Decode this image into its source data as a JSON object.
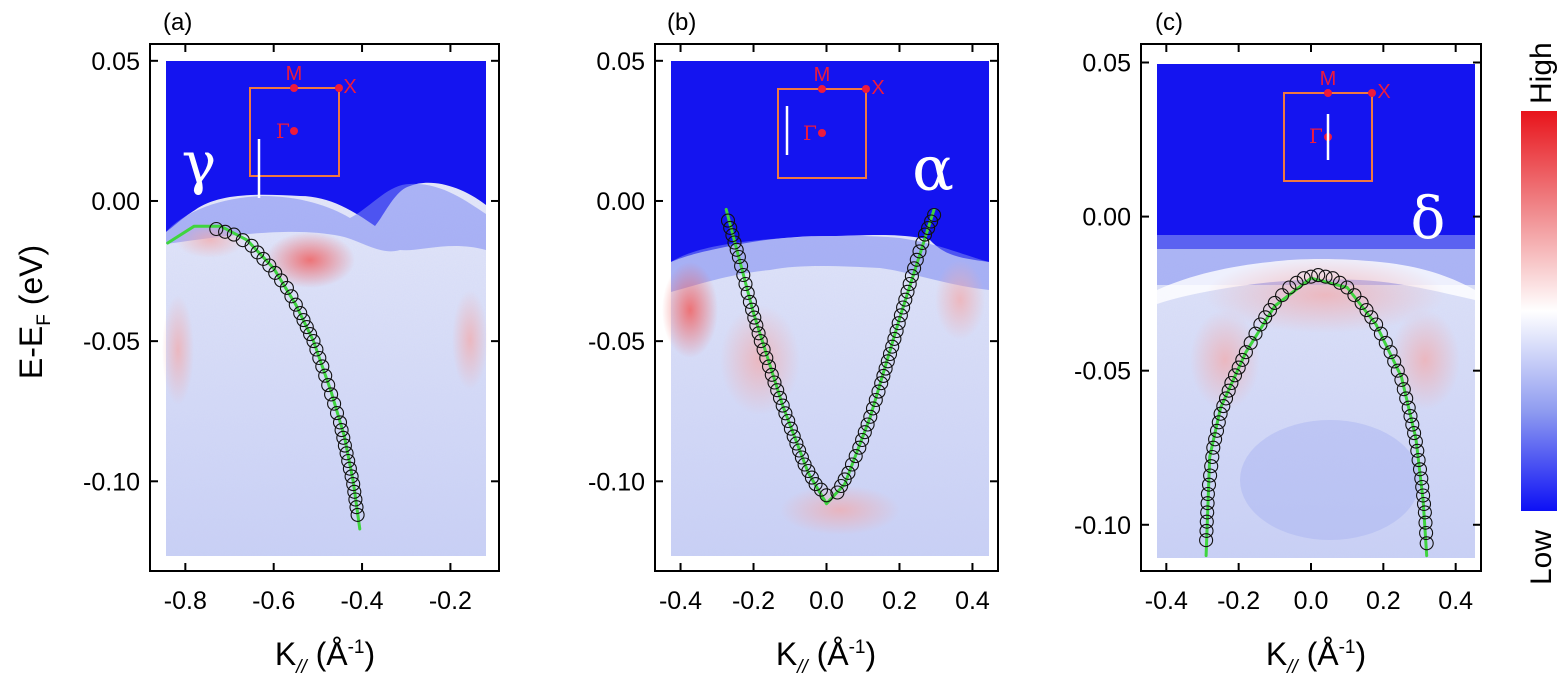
{
  "chart_data": [
    {
      "type": "scatter",
      "panel_label": "(a)",
      "band_label": "γ",
      "xlabel": "K// (Å-1)",
      "ylabel": "E-EF (eV)",
      "xlim": [
        -0.88,
        -0.09
      ],
      "ylim": [
        -0.132,
        0.056
      ],
      "x_ticks": [
        -0.8,
        -0.6,
        -0.4,
        -0.2
      ],
      "x_tick_labels": [
        "-0.8",
        "-0.6",
        "-0.4",
        "-0.2"
      ],
      "y_ticks": [
        0.05,
        0.0,
        -0.05,
        -0.1
      ],
      "y_tick_labels": [
        "0.05",
        "0.00",
        "-0.05",
        "-0.10"
      ],
      "image_extent": {
        "x": [
          -0.84,
          -0.11
        ],
        "y": [
          -0.131,
          0.05
        ]
      },
      "series": [
        {
          "name": "band positions",
          "style": "circles",
          "x": [
            -0.73,
            -0.69,
            -0.65,
            -0.61,
            -0.57,
            -0.54,
            -0.51,
            -0.49,
            -0.47,
            -0.45,
            -0.435,
            -0.42,
            -0.41
          ],
          "y": [
            -0.01,
            -0.012,
            -0.016,
            -0.023,
            -0.031,
            -0.04,
            -0.05,
            -0.059,
            -0.069,
            -0.079,
            -0.09,
            -0.101,
            -0.112
          ]
        },
        {
          "name": "fit",
          "style": "green line",
          "x": [
            -0.84,
            -0.78,
            -0.72,
            -0.66,
            -0.6,
            -0.55,
            -0.51,
            -0.47,
            -0.44,
            -0.42,
            -0.405
          ],
          "y": [
            -0.015,
            -0.009,
            -0.009,
            -0.014,
            -0.024,
            -0.037,
            -0.05,
            -0.068,
            -0.084,
            -0.1,
            -0.117
          ]
        }
      ],
      "inset": {
        "labels": [
          "M",
          "X",
          "Γ"
        ]
      }
    },
    {
      "type": "scatter",
      "panel_label": "(b)",
      "band_label": "α",
      "xlabel": "K// (Å-1)",
      "ylabel": "",
      "xlim": [
        -0.47,
        0.47
      ],
      "ylim": [
        -0.132,
        0.056
      ],
      "x_ticks": [
        -0.4,
        -0.2,
        0.0,
        0.2,
        0.4
      ],
      "x_tick_labels": [
        "-0.4",
        "-0.2",
        "0.0",
        "0.2",
        "0.4"
      ],
      "y_ticks": [
        0.05,
        0.0,
        -0.05,
        -0.1
      ],
      "y_tick_labels": [
        "0.05",
        "0.00",
        "-0.05",
        "-0.10"
      ],
      "image_extent": {
        "x": [
          -0.42,
          0.42
        ],
        "y": [
          -0.121,
          0.05
        ]
      },
      "series": [
        {
          "name": "band positions",
          "style": "circles",
          "x": [
            -0.27,
            -0.24,
            -0.21,
            -0.18,
            -0.15,
            -0.12,
            -0.09,
            -0.06,
            -0.03,
            0.0,
            0.03,
            0.06,
            0.09,
            0.12,
            0.15,
            0.18,
            0.21,
            0.24,
            0.27,
            0.295
          ],
          "y": [
            -0.007,
            -0.02,
            -0.036,
            -0.05,
            -0.062,
            -0.073,
            -0.084,
            -0.094,
            -0.101,
            -0.105,
            -0.104,
            -0.097,
            -0.088,
            -0.077,
            -0.065,
            -0.052,
            -0.038,
            -0.024,
            -0.012,
            -0.005
          ]
        },
        {
          "name": "fit",
          "style": "green line",
          "x": [
            -0.275,
            -0.2,
            -0.12,
            -0.05,
            0.0,
            0.05,
            0.12,
            0.2,
            0.295
          ],
          "y": [
            -0.003,
            -0.04,
            -0.073,
            -0.097,
            -0.108,
            -0.101,
            -0.077,
            -0.042,
            -0.003
          ]
        }
      ],
      "inset": {
        "labels": [
          "M",
          "X",
          "Γ"
        ]
      }
    },
    {
      "type": "scatter",
      "panel_label": "(c)",
      "band_label": "δ",
      "xlabel": "K// (Å-1)",
      "ylabel": "",
      "xlim": [
        -0.47,
        0.47
      ],
      "ylim": [
        -0.115,
        0.056
      ],
      "x_ticks": [
        -0.4,
        -0.2,
        0.0,
        0.2,
        0.4
      ],
      "x_tick_labels": [
        "-0.4",
        "-0.2",
        "0.0",
        "0.2",
        "0.4"
      ],
      "y_ticks": [
        0.05,
        0.0,
        -0.05,
        -0.1
      ],
      "y_tick_labels": [
        "0.05",
        "0.00",
        "-0.05",
        "-0.10"
      ],
      "image_extent": {
        "x": [
          -0.43,
          0.43
        ],
        "y": [
          -0.111,
          0.05
        ]
      },
      "series": [
        {
          "name": "band positions",
          "style": "circles",
          "x": [
            -0.29,
            -0.285,
            -0.27,
            -0.25,
            -0.22,
            -0.18,
            -0.14,
            -0.1,
            -0.06,
            -0.02,
            0.02,
            0.06,
            0.1,
            0.14,
            0.18,
            0.22,
            0.25,
            0.27,
            0.29,
            0.305,
            0.315,
            0.32
          ],
          "y": [
            -0.105,
            -0.09,
            -0.075,
            -0.064,
            -0.054,
            -0.044,
            -0.035,
            -0.028,
            -0.023,
            -0.02,
            -0.019,
            -0.02,
            -0.023,
            -0.028,
            -0.035,
            -0.044,
            -0.053,
            -0.062,
            -0.073,
            -0.085,
            -0.096,
            -0.106
          ]
        },
        {
          "name": "fit",
          "style": "green line",
          "x": [
            -0.29,
            -0.28,
            -0.25,
            -0.18,
            -0.1,
            0.0,
            0.1,
            0.18,
            0.25,
            0.29,
            0.31,
            0.32
          ],
          "y": [
            -0.11,
            -0.078,
            -0.062,
            -0.044,
            -0.029,
            -0.02,
            -0.023,
            -0.035,
            -0.052,
            -0.072,
            -0.092,
            -0.11
          ]
        }
      ],
      "inset": {
        "labels": [
          "M",
          "X",
          "Γ"
        ]
      }
    }
  ],
  "colorbar": {
    "high_label": "High",
    "low_label": "Low",
    "colors": [
      "#e8141b",
      "#f08a8d",
      "#ffffff",
      "#8f9cf0",
      "#0d10f5"
    ]
  },
  "colors": {
    "fit": "#3fd43f",
    "marker": "#111111",
    "inset_box": "#f07840",
    "inset_marker": "#ee1a3c",
    "cut_line": "#ffffff",
    "band_high": "#0a10ee"
  }
}
